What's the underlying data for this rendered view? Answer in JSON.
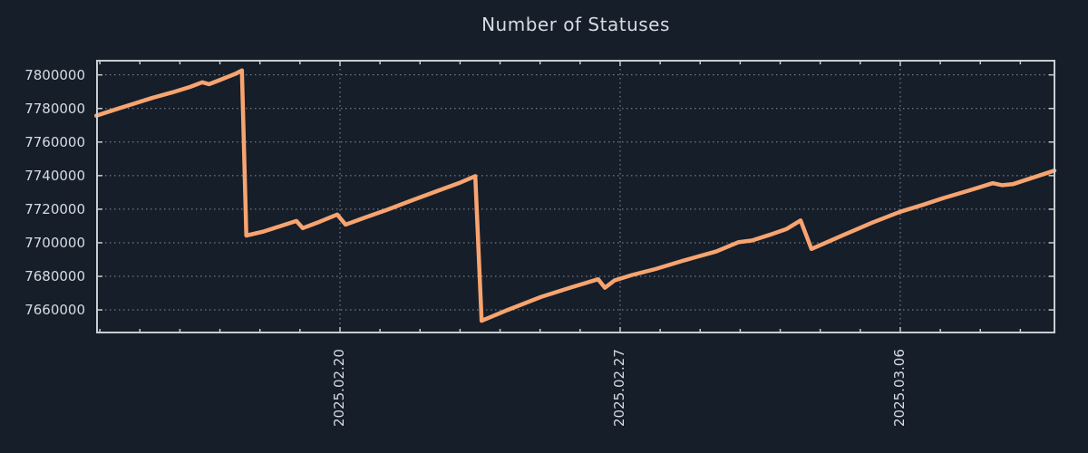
{
  "title": "Number of Statuses",
  "colors": {
    "background": "#161e2a",
    "text": "#d6dbe1",
    "border": "#c8cdd3",
    "grid": "#8a9099",
    "line": "#f7a470"
  },
  "chart_data": {
    "type": "line",
    "title": "Number of Statuses",
    "legend": "none",
    "grid": "dotted",
    "x_axis": {
      "reference_date": "2025-02-20",
      "range_days": [
        -6.094,
        17.875
      ],
      "minor_tick_every_days": 1,
      "minor_tick_day_start": -6,
      "minor_tick_day_end": 17,
      "major_ticks": [
        {
          "d": 0,
          "label": "2025.02.20"
        },
        {
          "d": 7,
          "label": "2025.02.27"
        },
        {
          "d": 14,
          "label": "2025.03.06"
        }
      ]
    },
    "y_axis": {
      "range": [
        7646000,
        7809000
      ],
      "ticks": [
        7660000,
        7680000,
        7700000,
        7720000,
        7740000,
        7760000,
        7780000,
        7800000
      ],
      "tick_labels": [
        "7660000",
        "7680000",
        "7700000",
        "7720000",
        "7740000",
        "7760000",
        "7780000",
        "7800000"
      ]
    },
    "series": [
      {
        "name": "Number of Statuses",
        "color": "#f7a470",
        "points": [
          [
            -6.09,
            7775700
          ],
          [
            -5.6,
            7779500
          ],
          [
            -5.2,
            7782500
          ],
          [
            -4.7,
            7786200
          ],
          [
            -4.2,
            7789500
          ],
          [
            -3.75,
            7792800
          ],
          [
            -3.44,
            7795600
          ],
          [
            -3.27,
            7794500
          ],
          [
            -3.02,
            7796800
          ],
          [
            -2.62,
            7800600
          ],
          [
            -2.45,
            7802700
          ],
          [
            -2.34,
            7704300
          ],
          [
            -1.9,
            7706800
          ],
          [
            -1.09,
            7713000
          ],
          [
            -0.93,
            7708700
          ],
          [
            -0.5,
            7712600
          ],
          [
            -0.07,
            7716800
          ],
          [
            0.14,
            7710800
          ],
          [
            0.6,
            7714800
          ],
          [
            1.18,
            7719700
          ],
          [
            1.8,
            7725300
          ],
          [
            2.45,
            7731000
          ],
          [
            3.0,
            7735800
          ],
          [
            3.38,
            7739700
          ],
          [
            3.54,
            7653500
          ],
          [
            4.19,
            7660000
          ],
          [
            5.03,
            7667800
          ],
          [
            5.8,
            7673600
          ],
          [
            6.45,
            7678300
          ],
          [
            6.62,
            7673200
          ],
          [
            6.86,
            7677600
          ],
          [
            7.3,
            7680800
          ],
          [
            7.88,
            7684300
          ],
          [
            8.6,
            7689500
          ],
          [
            9.4,
            7694800
          ],
          [
            9.95,
            7700300
          ],
          [
            10.3,
            7701400
          ],
          [
            10.8,
            7705200
          ],
          [
            11.15,
            7708100
          ],
          [
            11.51,
            7713300
          ],
          [
            11.78,
            7696300
          ],
          [
            12.57,
            7704500
          ],
          [
            13.3,
            7712000
          ],
          [
            14.0,
            7718500
          ],
          [
            14.55,
            7722500
          ],
          [
            15.06,
            7726500
          ],
          [
            15.7,
            7731000
          ],
          [
            16.31,
            7735500
          ],
          [
            16.55,
            7734300
          ],
          [
            16.81,
            7734900
          ],
          [
            17.4,
            7739500
          ],
          [
            17.85,
            7743000
          ]
        ]
      }
    ]
  }
}
